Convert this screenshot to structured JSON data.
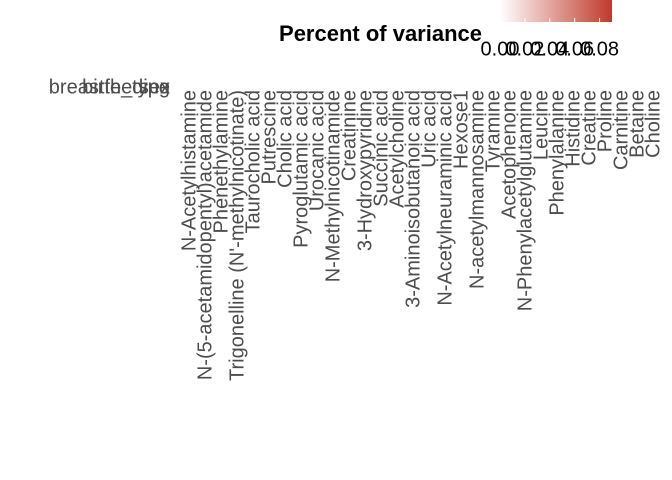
{
  "chart_data": {
    "type": "heatmap",
    "legend_title": "Percent of variance",
    "rows": [
      "breastfeeding",
      "birth_type",
      "sex"
    ],
    "columns": [
      "N-Acetylhistamine",
      "N-(5-acetamidopentyl)acetamide",
      "Phenethylamine",
      "Trigonelline (N'-methylnicotinate)",
      "Taurocholic acid",
      "Putrescine",
      "Cholic acid",
      "Pyroglutamic acid",
      "Urocanic acid",
      "N-Methylnicotinamide",
      "Creatinine",
      "3-Hydroxypyridine",
      "Succinic acid",
      "Acetylcholine",
      "3-Aminoisobutanoic acid",
      "Uric acid",
      "N-Acetylneuraminic acid",
      "Hexose1",
      "N-acetylmannosamine",
      "Tyramine",
      "Acetophenone",
      "N-Phenylacetylglutamine",
      "Leucine",
      "Phenylalanine",
      "Histidine",
      "Creatine",
      "Proline",
      "Carnitine",
      "Betaine",
      "Choline"
    ],
    "color_low": "#ffffff",
    "color_high": "#c0392b",
    "clim": [
      0,
      0.09
    ],
    "cticks": [
      {
        "value": 0,
        "label": "0.00"
      },
      0.02,
      0.04,
      0.06,
      0.08
    ]
  }
}
